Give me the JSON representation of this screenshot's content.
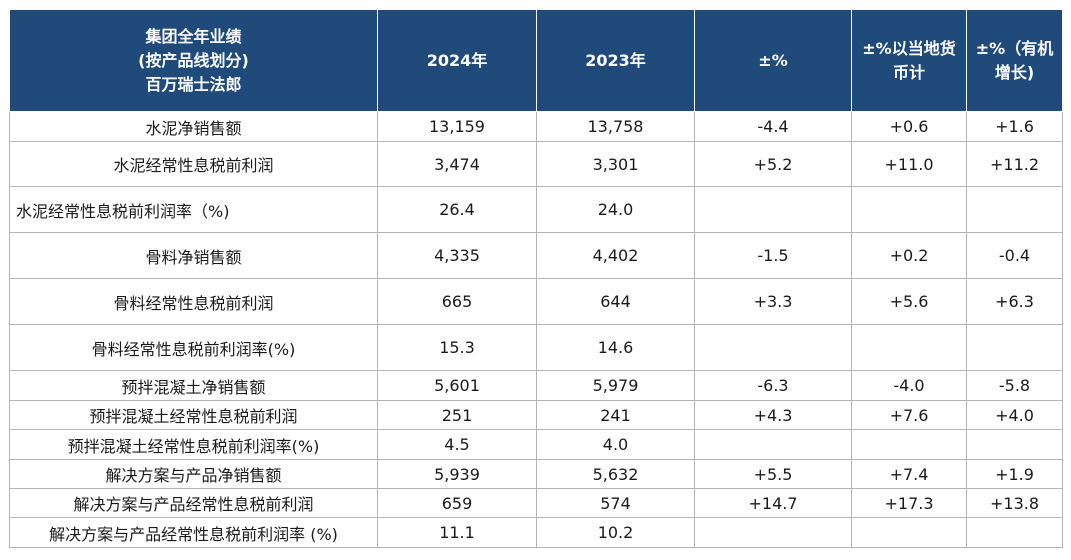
{
  "table": {
    "header": [
      [
        "集团全年业绩",
        "(按产品线划分)",
        "百万瑞士法郎"
      ],
      [
        "2024年"
      ],
      [
        "2023年"
      ],
      [
        "±%"
      ],
      [
        "±%以当地货",
        "币计"
      ],
      [
        "±%（有机",
        "增长)"
      ]
    ],
    "rows": [
      {
        "label": "水泥净销售额",
        "v2024": "13,159",
        "v2023": "13,758",
        "pct": "-4.4",
        "local": "+0.6",
        "organic": "+1.6"
      },
      {
        "label": "水泥经常性息税前利润",
        "v2024": "3,474",
        "v2023": "3,301",
        "pct": "+5.2",
        "local": "+11.0",
        "organic": "+11.2"
      },
      {
        "label": "水泥经常性息税前利润率（%)",
        "v2024": "26.4",
        "v2023": "24.0",
        "pct": "",
        "local": "",
        "organic": ""
      },
      {
        "label": "骨料净销售额",
        "v2024": "4,335",
        "v2023": "4,402",
        "pct": "-1.5",
        "local": "+0.2",
        "organic": "-0.4"
      },
      {
        "label": "骨料经常性息税前利润",
        "v2024": "665",
        "v2023": "644",
        "pct": "+3.3",
        "local": "+5.6",
        "organic": "+6.3"
      },
      {
        "label": "骨料经常性息税前利润率(%)",
        "v2024": "15.3",
        "v2023": "14.6",
        "pct": "",
        "local": "",
        "organic": ""
      },
      {
        "label": "预拌混凝土净销售额",
        "v2024": "5,601",
        "v2023": "5,979",
        "pct": "-6.3",
        "local": "-4.0",
        "organic": "-5.8"
      },
      {
        "label": "预拌混凝土经常性息税前利润",
        "v2024": "251",
        "v2023": "241",
        "pct": "+4.3",
        "local": "+7.6",
        "organic": "+4.0"
      },
      {
        "label": "预拌混凝土经常性息税前利润率(%)",
        "v2024": "4.5",
        "v2023": "4.0",
        "pct": "",
        "local": "",
        "organic": ""
      },
      {
        "label": "解决方案与产品净销售额",
        "v2024": "5,939",
        "v2023": "5,632",
        "pct": "+5.5",
        "local": "+7.4",
        "organic": "+1.9"
      },
      {
        "label": "解决方案与产品经常性息税前利润",
        "v2024": "659",
        "v2023": "574",
        "pct": "+14.7",
        "local": "+17.3",
        "organic": "+13.8"
      },
      {
        "label": "解决方案与产品经常性息税前利润率 (%)",
        "v2024": "11.1",
        "v2023": "10.2",
        "pct": "",
        "local": "",
        "organic": ""
      }
    ]
  }
}
